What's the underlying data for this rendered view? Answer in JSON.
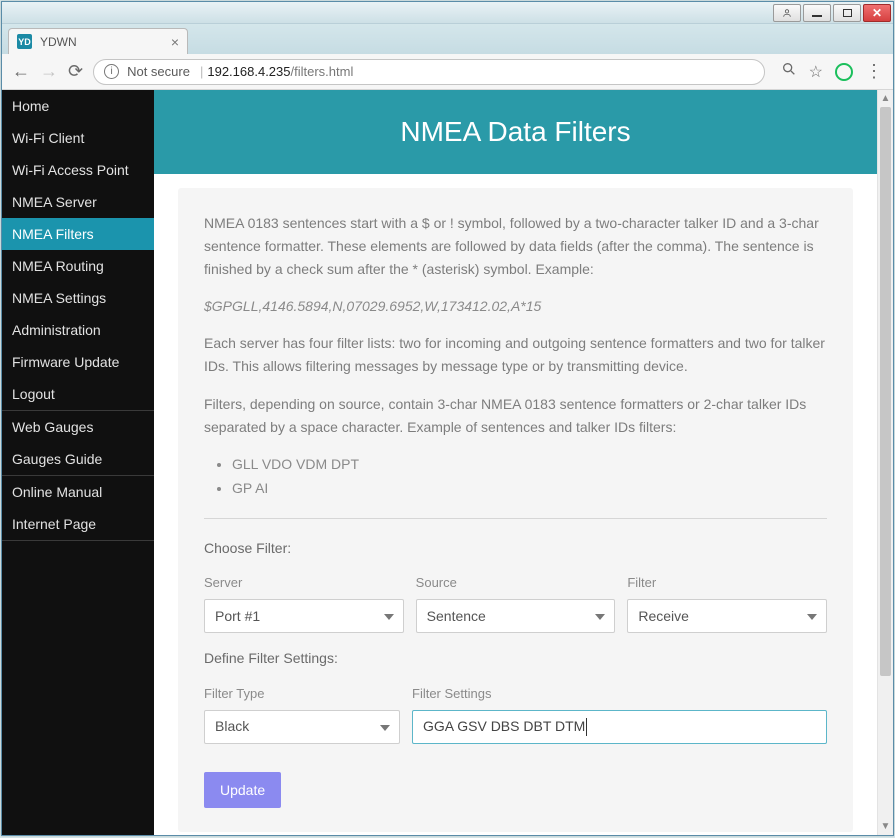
{
  "window": {
    "tab_title": "YDWN",
    "favicon_text": "YD"
  },
  "addressbar": {
    "not_secure_label": "Not secure",
    "host": "192.168.4.235",
    "path": "/filters.html"
  },
  "sidebar": {
    "group1": [
      {
        "label": "Home",
        "active": false
      },
      {
        "label": "Wi-Fi Client",
        "active": false
      },
      {
        "label": "Wi-Fi Access Point",
        "active": false
      },
      {
        "label": "NMEA Server",
        "active": false
      },
      {
        "label": "NMEA Filters",
        "active": true
      },
      {
        "label": "NMEA Routing",
        "active": false
      },
      {
        "label": "NMEA Settings",
        "active": false
      },
      {
        "label": "Administration",
        "active": false
      },
      {
        "label": "Firmware Update",
        "active": false
      },
      {
        "label": "Logout",
        "active": false
      }
    ],
    "group2": [
      {
        "label": "Web Gauges"
      },
      {
        "label": "Gauges Guide"
      }
    ],
    "group3": [
      {
        "label": "Online Manual"
      },
      {
        "label": "Internet Page"
      }
    ]
  },
  "page": {
    "title": "NMEA Data Filters",
    "intro1": "NMEA 0183 sentences start with a $ or ! symbol, followed by a two-character talker ID and a 3-char sentence formatter. These elements are followed by data fields (after the comma). The sentence is finished by a check sum after the * (asterisk) symbol. Example:",
    "example_code": "$GPGLL,4146.5894,N,07029.6952,W,173412.02,A*15",
    "intro2": "Each server has four filter lists: two for incoming and outgoing sentence formatters and two for talker IDs. This allows filtering messages by message type or by transmitting device.",
    "intro3": "Filters, depending on source, contain 3-char NMEA 0183 sentence formatters or 2-char talker IDs separated by a space character. Example of sentences and talker IDs filters:",
    "bullets": [
      "GLL VDO VDM DPT",
      "GP AI"
    ],
    "choose_filter_label": "Choose Filter:",
    "server_label": "Server",
    "server_value": "Port #1",
    "source_label": "Source",
    "source_value": "Sentence",
    "filter_label": "Filter",
    "filter_value": "Receive",
    "define_label": "Define Filter Settings:",
    "ftype_label": "Filter Type",
    "ftype_value": "Black",
    "fsettings_label": "Filter Settings",
    "fsettings_value": "GGA GSV DBS DBT DTM",
    "update_button": "Update"
  },
  "colors": {
    "header_bg": "#2a9aa8",
    "sidebar_bg": "#101010",
    "sidebar_active": "#1b94ad",
    "panel_bg": "#f5f5f5",
    "button_bg": "#8b8af0",
    "input_focus_border": "#5cb6c9"
  }
}
